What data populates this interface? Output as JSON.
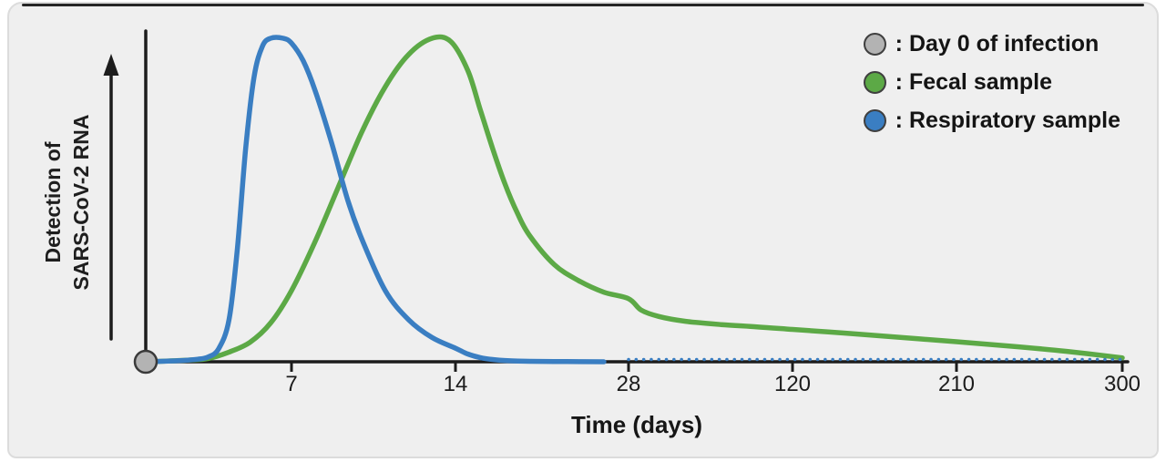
{
  "figure": {
    "y_axis_label_line1": "Detection of",
    "y_axis_label_line2": "SARS-CoV-2 RNA",
    "x_axis_label": "Time (days)"
  },
  "legend": {
    "items": [
      {
        "label": ": Day 0 of infection",
        "color": "#b3b3b3"
      },
      {
        "label": ": Fecal sample",
        "color": "#5ca946"
      },
      {
        "label": ": Respiratory sample",
        "color": "#3a7ec2"
      }
    ]
  },
  "chart_data": {
    "type": "line",
    "title": "",
    "xlabel": "Time (days)",
    "ylabel": "Detection of SARS-CoV-2 RNA",
    "x_ticks": [
      7,
      14,
      28,
      120,
      210,
      300
    ],
    "x_scale": "piecewise-equal-segments",
    "y_range": [
      0,
      1
    ],
    "grid": false,
    "legend_position": "top-right",
    "annotations": [
      {
        "type": "point-marker",
        "x": 0,
        "y": 0,
        "label": "Day 0 of infection",
        "color": "#b3b3b3"
      }
    ],
    "series": [
      {
        "name": "Fecal sample",
        "color": "#5ca946",
        "style": "solid",
        "points": [
          [
            0,
            0
          ],
          [
            2,
            0.005
          ],
          [
            3,
            0.01
          ],
          [
            4,
            0.03
          ],
          [
            5,
            0.06
          ],
          [
            6,
            0.12
          ],
          [
            7,
            0.22
          ],
          [
            8,
            0.37
          ],
          [
            9,
            0.54
          ],
          [
            10,
            0.71
          ],
          [
            11,
            0.85
          ],
          [
            12,
            0.95
          ],
          [
            13,
            1.0
          ],
          [
            13.8,
            0.99
          ],
          [
            15,
            0.9
          ],
          [
            16,
            0.78
          ],
          [
            17,
            0.66
          ],
          [
            18,
            0.55
          ],
          [
            19,
            0.46
          ],
          [
            20,
            0.39
          ],
          [
            22,
            0.3
          ],
          [
            24,
            0.25
          ],
          [
            26,
            0.215
          ],
          [
            28,
            0.195
          ],
          [
            35,
            0.16
          ],
          [
            45,
            0.14
          ],
          [
            60,
            0.125
          ],
          [
            80,
            0.115
          ],
          [
            100,
            0.108
          ],
          [
            120,
            0.1
          ],
          [
            150,
            0.088
          ],
          [
            180,
            0.075
          ],
          [
            210,
            0.062
          ],
          [
            240,
            0.048
          ],
          [
            270,
            0.032
          ],
          [
            300,
            0.012
          ]
        ]
      },
      {
        "name": "Respiratory sample",
        "color": "#3a7ec2",
        "style": "solid-then-dotted",
        "points": [
          [
            0,
            0
          ],
          [
            1.5,
            0.003
          ],
          [
            2.5,
            0.008
          ],
          [
            3,
            0.015
          ],
          [
            3.5,
            0.04
          ],
          [
            4,
            0.13
          ],
          [
            4.4,
            0.35
          ],
          [
            4.8,
            0.66
          ],
          [
            5.2,
            0.88
          ],
          [
            5.6,
            0.975
          ],
          [
            6,
            1.0
          ],
          [
            6.6,
            1.0
          ],
          [
            7,
            0.985
          ],
          [
            7.5,
            0.93
          ],
          [
            8,
            0.84
          ],
          [
            8.7,
            0.68
          ],
          [
            9.4,
            0.5
          ],
          [
            10,
            0.38
          ],
          [
            11,
            0.22
          ],
          [
            12,
            0.13
          ],
          [
            13,
            0.075
          ],
          [
            14,
            0.042
          ],
          [
            15,
            0.024
          ],
          [
            16,
            0.013
          ],
          [
            17,
            0.007
          ],
          [
            18,
            0.004
          ],
          [
            20,
            0.0015
          ],
          [
            23,
            0.0005
          ],
          [
            26,
            0
          ]
        ],
        "dashed_tail": {
          "from_day": 28,
          "to_day": 300,
          "value": 0
        }
      }
    ]
  }
}
